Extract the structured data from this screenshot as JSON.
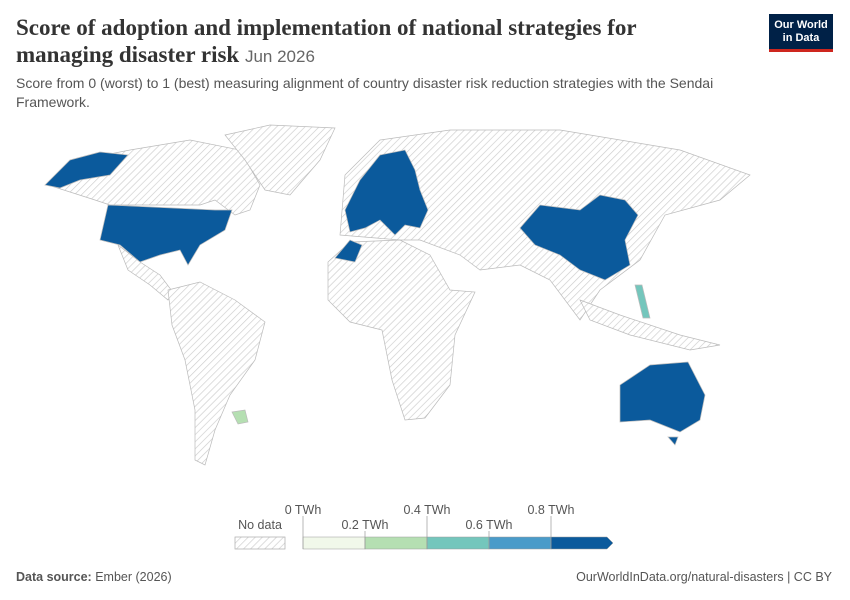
{
  "header": {
    "title": "Score of adoption and implementation of national strategies for managing disaster risk",
    "date": "Jun 2026",
    "subtitle": "Score from 0 (worst) to 1 (best) measuring alignment of country disaster risk reduction strategies with the Sendai Framework.",
    "logo": [
      "Our World",
      "in Data"
    ]
  },
  "legend": {
    "no_data": "No data",
    "ticks": [
      "0 TWh",
      "0.2 TWh",
      "0.4 TWh",
      "0.6 TWh",
      "0.8 TWh"
    ],
    "colors": [
      "#f1f8ea",
      "#b5dfb2",
      "#74c6bc",
      "#4a9bc9",
      "#0b5a9c"
    ]
  },
  "footer": {
    "source_label": "Data source:",
    "source": "Ember (2026)",
    "url": "OurWorldInData.org/natural-disasters | CC BY"
  }
}
